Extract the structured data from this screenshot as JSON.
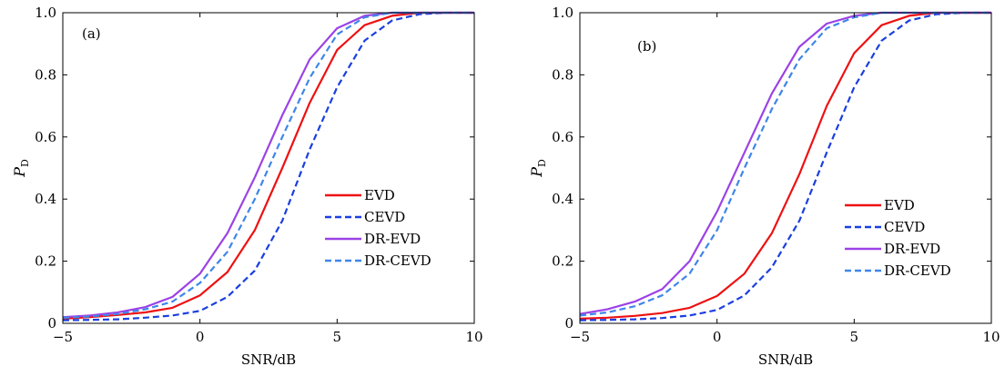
{
  "chart_data": [
    {
      "type": "line",
      "panel_label": "(a)",
      "xlabel": "SNR/dB",
      "ylabel": {
        "base": "P",
        "sub": "D"
      },
      "xlim": [
        -5,
        10
      ],
      "ylim": [
        0,
        1.0
      ],
      "xticks": [
        -5,
        0,
        5,
        10
      ],
      "yticks": [
        0,
        0.2,
        0.4,
        0.6,
        0.8,
        1.0
      ],
      "xtick_labels": [
        "−5",
        "0",
        "5",
        "10"
      ],
      "ytick_labels": [
        "0",
        "0.2",
        "0.4",
        "0.6",
        "0.8",
        "1.0"
      ],
      "grid": false,
      "legend_position": "center-right",
      "x": [
        -5,
        -4,
        -3,
        -2,
        -1,
        0,
        1,
        2,
        3,
        4,
        5,
        6,
        7,
        8,
        9,
        10
      ],
      "series": [
        {
          "name": "EVD",
          "color": "#ee1111",
          "dash": "solid",
          "values": [
            0.015,
            0.02,
            0.027,
            0.035,
            0.05,
            0.09,
            0.165,
            0.3,
            0.5,
            0.71,
            0.88,
            0.96,
            0.99,
            1.0,
            1.0,
            1.0
          ]
        },
        {
          "name": "CEVD",
          "color": "#1a3fe0",
          "dash": "dashed",
          "values": [
            0.01,
            0.011,
            0.013,
            0.018,
            0.025,
            0.04,
            0.085,
            0.17,
            0.33,
            0.56,
            0.76,
            0.91,
            0.975,
            0.995,
            1.0,
            1.0
          ]
        },
        {
          "name": "DR-EVD",
          "color": "#9b42e6",
          "dash": "solid",
          "values": [
            0.02,
            0.025,
            0.035,
            0.052,
            0.085,
            0.16,
            0.29,
            0.47,
            0.67,
            0.85,
            0.95,
            0.99,
            1.0,
            1.0,
            1.0,
            1.0
          ]
        },
        {
          "name": "DR-CEVD",
          "color": "#3f86e8",
          "dash": "dashed",
          "values": [
            0.018,
            0.022,
            0.03,
            0.045,
            0.07,
            0.13,
            0.23,
            0.4,
            0.6,
            0.79,
            0.93,
            0.985,
            1.0,
            1.0,
            1.0,
            1.0
          ]
        }
      ]
    },
    {
      "type": "line",
      "panel_label": "(b)",
      "xlabel": "SNR/dB",
      "ylabel": {
        "base": "P",
        "sub": "D"
      },
      "xlim": [
        -5,
        10
      ],
      "ylim": [
        0,
        1.0
      ],
      "xticks": [
        -5,
        0,
        5,
        10
      ],
      "yticks": [
        0,
        0.2,
        0.4,
        0.6,
        0.8,
        1.0
      ],
      "xtick_labels": [
        "−5",
        "0",
        "5",
        "10"
      ],
      "ytick_labels": [
        "0",
        "0.2",
        "0.4",
        "0.6",
        "0.8",
        "1.0"
      ],
      "grid": false,
      "legend_position": "bottom-right",
      "x": [
        -5,
        -4,
        -3,
        -2,
        -1,
        0,
        1,
        2,
        3,
        4,
        5,
        6,
        7,
        8,
        9,
        10
      ],
      "series": [
        {
          "name": "EVD",
          "color": "#ee1111",
          "dash": "solid",
          "values": [
            0.015,
            0.018,
            0.024,
            0.033,
            0.05,
            0.088,
            0.16,
            0.29,
            0.48,
            0.7,
            0.87,
            0.96,
            0.99,
            1.0,
            1.0,
            1.0
          ]
        },
        {
          "name": "CEVD",
          "color": "#1a3fe0",
          "dash": "dashed",
          "values": [
            0.01,
            0.011,
            0.013,
            0.017,
            0.025,
            0.043,
            0.09,
            0.18,
            0.33,
            0.55,
            0.76,
            0.91,
            0.975,
            0.995,
            1.0,
            1.0
          ]
        },
        {
          "name": "DR-EVD",
          "color": "#9b42e6",
          "dash": "solid",
          "values": [
            0.03,
            0.045,
            0.07,
            0.11,
            0.2,
            0.36,
            0.55,
            0.74,
            0.89,
            0.965,
            0.99,
            1.0,
            1.0,
            1.0,
            1.0,
            1.0
          ]
        },
        {
          "name": "DR-CEVD",
          "color": "#3f86e8",
          "dash": "dashed",
          "values": [
            0.025,
            0.035,
            0.055,
            0.09,
            0.16,
            0.3,
            0.5,
            0.69,
            0.85,
            0.95,
            0.985,
            1.0,
            1.0,
            1.0,
            1.0,
            1.0
          ]
        }
      ]
    }
  ]
}
